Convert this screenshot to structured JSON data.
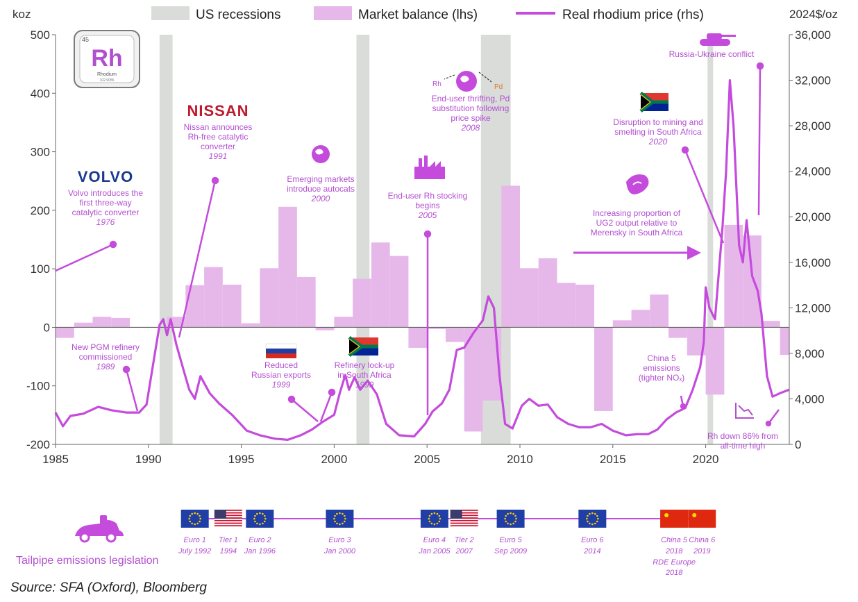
{
  "legend": {
    "recessions": "US recessions",
    "balance": "Market balance (lhs)",
    "price": "Real rhodium price (rhs)"
  },
  "axes": {
    "left_unit": "koz",
    "right_unit": "2024$/oz"
  },
  "element_tile": {
    "number": "45",
    "symbol": "Rh",
    "name": "Rhodium",
    "mass": "102.9055"
  },
  "brands": {
    "volvo": "VOLVO",
    "nissan": "NISSAN"
  },
  "annotations": [
    {
      "id": "volvo",
      "lines": [
        "Volvo introduces the",
        "first three-way",
        "catalytic converter"
      ],
      "year": "1976"
    },
    {
      "id": "nissan",
      "lines": [
        "Nissan announces",
        "Rh-free catalytic",
        "converter"
      ],
      "year": "1991"
    },
    {
      "id": "emerging",
      "lines": [
        "Emerging markets",
        "introduce autocats"
      ],
      "year": "2000"
    },
    {
      "id": "stocking",
      "lines": [
        "End-user Rh stocking",
        "begins"
      ],
      "year": "2005"
    },
    {
      "id": "thrifting",
      "lines": [
        "End-user thrifting, Pd",
        "substitution following",
        "price spike"
      ],
      "year": "2008"
    },
    {
      "id": "disruption",
      "lines": [
        "Disruption to mining and",
        "smelting in South Africa"
      ],
      "year": "2020"
    },
    {
      "id": "ug2",
      "lines": [
        "Increasing proportion of",
        "UG2 output relative to",
        "Merensky in South Africa"
      ],
      "year": ""
    },
    {
      "id": "russia_ukraine",
      "lines": [
        "Russia-Ukraine conflict"
      ],
      "year": ""
    },
    {
      "id": "pgm_refinery",
      "lines": [
        "New PGM refinery",
        "commissioned"
      ],
      "year": "1989"
    },
    {
      "id": "russian_exports",
      "lines": [
        "Reduced",
        "Russian exports"
      ],
      "year": "1999"
    },
    {
      "id": "lockup",
      "lines": [
        "Refinery lock-up",
        "in South Africa"
      ],
      "year": "1999"
    },
    {
      "id": "china5",
      "lines": [
        "China 5",
        "emissions",
        "(tighter NOₓ)"
      ],
      "year": ""
    },
    {
      "id": "rh_down",
      "lines": [
        "Rh down 86% from",
        "all-time high"
      ],
      "year": ""
    }
  ],
  "arrow_labels": {
    "rh": "Rh",
    "pd": "Pd"
  },
  "legislation": {
    "title": "Tailpipe emissions legislation",
    "items": [
      {
        "flag": "eu",
        "name": "Euro 1",
        "date": "July 1992",
        "x": 1992.5
      },
      {
        "flag": "us",
        "name": "Tier 1",
        "date": "1994",
        "x": 1994.3
      },
      {
        "flag": "eu",
        "name": "Euro 2",
        "date": "Jan 1996",
        "x": 1996.0
      },
      {
        "flag": "eu",
        "name": "Euro 3",
        "date": "Jan 2000",
        "x": 2000.3
      },
      {
        "flag": "eu",
        "name": "Euro 4",
        "date": "Jan 2005",
        "x": 2005.4
      },
      {
        "flag": "us",
        "name": "Tier 2",
        "date": "2007",
        "x": 2007.0
      },
      {
        "flag": "eu",
        "name": "Euro 5",
        "date": "Sep 2009",
        "x": 2009.5
      },
      {
        "flag": "eu",
        "name": "Euro 6",
        "date": "2014",
        "x": 2013.9
      },
      {
        "flag": "cn",
        "name": "China 5",
        "date": "2018",
        "extra": [
          "RDE Europe",
          "2018"
        ],
        "x": 2018.3
      },
      {
        "flag": "cn",
        "name": "China 6",
        "date": "2019",
        "x": 2019.8
      }
    ]
  },
  "source": "Source: SFA (Oxford), Bloomberg",
  "chart_data": {
    "type": "bar+line",
    "x_range": [
      1985,
      2024.5
    ],
    "x_ticks": [
      1985,
      1990,
      1995,
      2000,
      2005,
      2010,
      2015,
      2020
    ],
    "y_left": {
      "label": "koz",
      "range": [
        -200,
        500
      ],
      "ticks": [
        -200,
        -100,
        0,
        100,
        200,
        300,
        400,
        500
      ]
    },
    "y_right": {
      "label": "2024$/oz",
      "range": [
        0,
        36000
      ],
      "ticks": [
        0,
        4000,
        8000,
        12000,
        16000,
        20000,
        24000,
        28000,
        32000,
        36000
      ]
    },
    "recessions": [
      [
        1990.6,
        1991.3
      ],
      [
        2001.2,
        2001.9
      ],
      [
        2007.9,
        2009.5
      ],
      [
        2020.1,
        2020.4
      ]
    ],
    "balance_series": {
      "name": "Market balance (lhs)",
      "color": "#e6b8ea",
      "bars": [
        {
          "year": 1985,
          "value": -18
        },
        {
          "year": 1986,
          "value": 8
        },
        {
          "year": 1987,
          "value": 18
        },
        {
          "year": 1988,
          "value": 16
        },
        {
          "year": 1989,
          "value": 0
        },
        {
          "year": 1990,
          "value": 0
        },
        {
          "year": 1991,
          "value": 18
        },
        {
          "year": 1992,
          "value": 72
        },
        {
          "year": 1993,
          "value": 103
        },
        {
          "year": 1994,
          "value": 73
        },
        {
          "year": 1995,
          "value": 7
        },
        {
          "year": 1996,
          "value": 101
        },
        {
          "year": 1997,
          "value": 206
        },
        {
          "year": 1998,
          "value": 86
        },
        {
          "year": 1999,
          "value": -5
        },
        {
          "year": 2000,
          "value": 18
        },
        {
          "year": 2001,
          "value": 83
        },
        {
          "year": 2002,
          "value": 145
        },
        {
          "year": 2003,
          "value": 122
        },
        {
          "year": 2004,
          "value": -35
        },
        {
          "year": 2005,
          "value": -3
        },
        {
          "year": 2006,
          "value": -25
        },
        {
          "year": 2007,
          "value": -178
        },
        {
          "year": 2008,
          "value": -125
        },
        {
          "year": 2009,
          "value": 242
        },
        {
          "year": 2010,
          "value": 101
        },
        {
          "year": 2011,
          "value": 118
        },
        {
          "year": 2012,
          "value": 76
        },
        {
          "year": 2013,
          "value": 73
        },
        {
          "year": 2014,
          "value": -143
        },
        {
          "year": 2015,
          "value": 12
        },
        {
          "year": 2016,
          "value": 30
        },
        {
          "year": 2017,
          "value": 56
        },
        {
          "year": 2018,
          "value": -18
        },
        {
          "year": 2019,
          "value": -48
        },
        {
          "year": 2020,
          "value": -115
        },
        {
          "year": 2021,
          "value": 175
        },
        {
          "year": 2022,
          "value": 157
        },
        {
          "year": 2023,
          "value": 11
        },
        {
          "year": 2024,
          "value": -47
        }
      ]
    },
    "price_series": {
      "name": "Real rhodium price (rhs)",
      "color": "#c44bdc",
      "points": [
        [
          1985.0,
          2800
        ],
        [
          1985.4,
          1600
        ],
        [
          1985.8,
          2500
        ],
        [
          1986.5,
          2700
        ],
        [
          1987.3,
          3300
        ],
        [
          1988.0,
          3000
        ],
        [
          1988.8,
          2800
        ],
        [
          1989.5,
          2800
        ],
        [
          1989.9,
          3500
        ],
        [
          1990.3,
          7500
        ],
        [
          1990.6,
          10500
        ],
        [
          1990.8,
          11000
        ],
        [
          1991.0,
          9600
        ],
        [
          1991.2,
          11000
        ],
        [
          1991.5,
          8800
        ],
        [
          1991.9,
          6500
        ],
        [
          1992.2,
          4800
        ],
        [
          1992.5,
          4000
        ],
        [
          1992.8,
          6000
        ],
        [
          1993.3,
          4500
        ],
        [
          1993.8,
          3600
        ],
        [
          1994.5,
          2600
        ],
        [
          1995.3,
          1200
        ],
        [
          1996.0,
          800
        ],
        [
          1996.8,
          500
        ],
        [
          1997.5,
          400
        ],
        [
          1998.2,
          800
        ],
        [
          1998.8,
          1300
        ],
        [
          1999.4,
          2000
        ],
        [
          2000.0,
          2600
        ],
        [
          2000.3,
          4500
        ],
        [
          2000.6,
          6100
        ],
        [
          2000.8,
          4800
        ],
        [
          2001.1,
          5900
        ],
        [
          2001.4,
          4800
        ],
        [
          2001.8,
          5600
        ],
        [
          2002.3,
          4400
        ],
        [
          2002.8,
          1800
        ],
        [
          2003.5,
          800
        ],
        [
          2004.3,
          700
        ],
        [
          2004.9,
          1800
        ],
        [
          2005.3,
          2900
        ],
        [
          2005.8,
          3600
        ],
        [
          2006.2,
          4800
        ],
        [
          2006.6,
          8300
        ],
        [
          2007.0,
          8500
        ],
        [
          2007.5,
          9800
        ],
        [
          2008.0,
          10900
        ],
        [
          2008.3,
          13000
        ],
        [
          2008.6,
          12000
        ],
        [
          2008.9,
          6000
        ],
        [
          2009.2,
          1800
        ],
        [
          2009.6,
          1400
        ],
        [
          2010.1,
          3400
        ],
        [
          2010.5,
          4000
        ],
        [
          2011.0,
          3400
        ],
        [
          2011.5,
          3500
        ],
        [
          2012.0,
          2400
        ],
        [
          2012.6,
          1800
        ],
        [
          2013.2,
          1500
        ],
        [
          2013.8,
          1500
        ],
        [
          2014.4,
          1800
        ],
        [
          2015.0,
          1200
        ],
        [
          2015.7,
          800
        ],
        [
          2016.3,
          900
        ],
        [
          2016.9,
          900
        ],
        [
          2017.4,
          1300
        ],
        [
          2017.9,
          2200
        ],
        [
          2018.4,
          2800
        ],
        [
          2018.9,
          3200
        ],
        [
          2019.3,
          4800
        ],
        [
          2019.7,
          6800
        ],
        [
          2019.9,
          9000
        ],
        [
          2020.0,
          13800
        ],
        [
          2020.2,
          12000
        ],
        [
          2020.5,
          11000
        ],
        [
          2020.9,
          19000
        ],
        [
          2021.1,
          24000
        ],
        [
          2021.3,
          32000
        ],
        [
          2021.5,
          28000
        ],
        [
          2021.8,
          17500
        ],
        [
          2022.0,
          16000
        ],
        [
          2022.2,
          19700
        ],
        [
          2022.5,
          14800
        ],
        [
          2022.8,
          13500
        ],
        [
          2023.0,
          11500
        ],
        [
          2023.3,
          6000
        ],
        [
          2023.6,
          4200
        ],
        [
          2024.0,
          4500
        ],
        [
          2024.5,
          4800
        ]
      ]
    }
  }
}
